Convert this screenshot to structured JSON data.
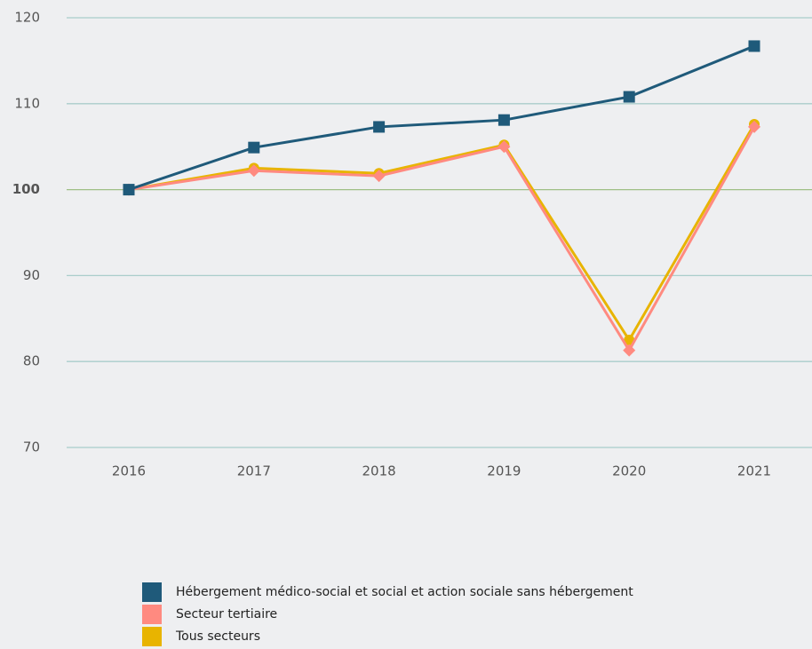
{
  "chart_data": {
    "type": "line",
    "categories": [
      "2016",
      "2017",
      "2018",
      "2019",
      "2020",
      "2021"
    ],
    "series": [
      {
        "name": "Hébergement médico-social et social et action sociale sans hébergement",
        "color": "#1f5a7a",
        "marker": "square",
        "values": [
          100,
          104.9,
          107.3,
          108.1,
          110.8,
          116.7
        ]
      },
      {
        "name": "Secteur tertiaire",
        "color": "#ff8a80",
        "marker": "diamond",
        "values": [
          100,
          102.2,
          101.6,
          105.0,
          81.3,
          107.3
        ]
      },
      {
        "name": "Tous secteurs",
        "color": "#e8b400",
        "marker": "circle",
        "values": [
          100,
          102.5,
          101.9,
          105.2,
          82.5,
          107.6
        ]
      }
    ],
    "ylim": [
      70,
      120
    ],
    "yticks": [
      70,
      80,
      90,
      100,
      110,
      120
    ],
    "grid": true,
    "baseline": 100,
    "legend": "bottom"
  }
}
